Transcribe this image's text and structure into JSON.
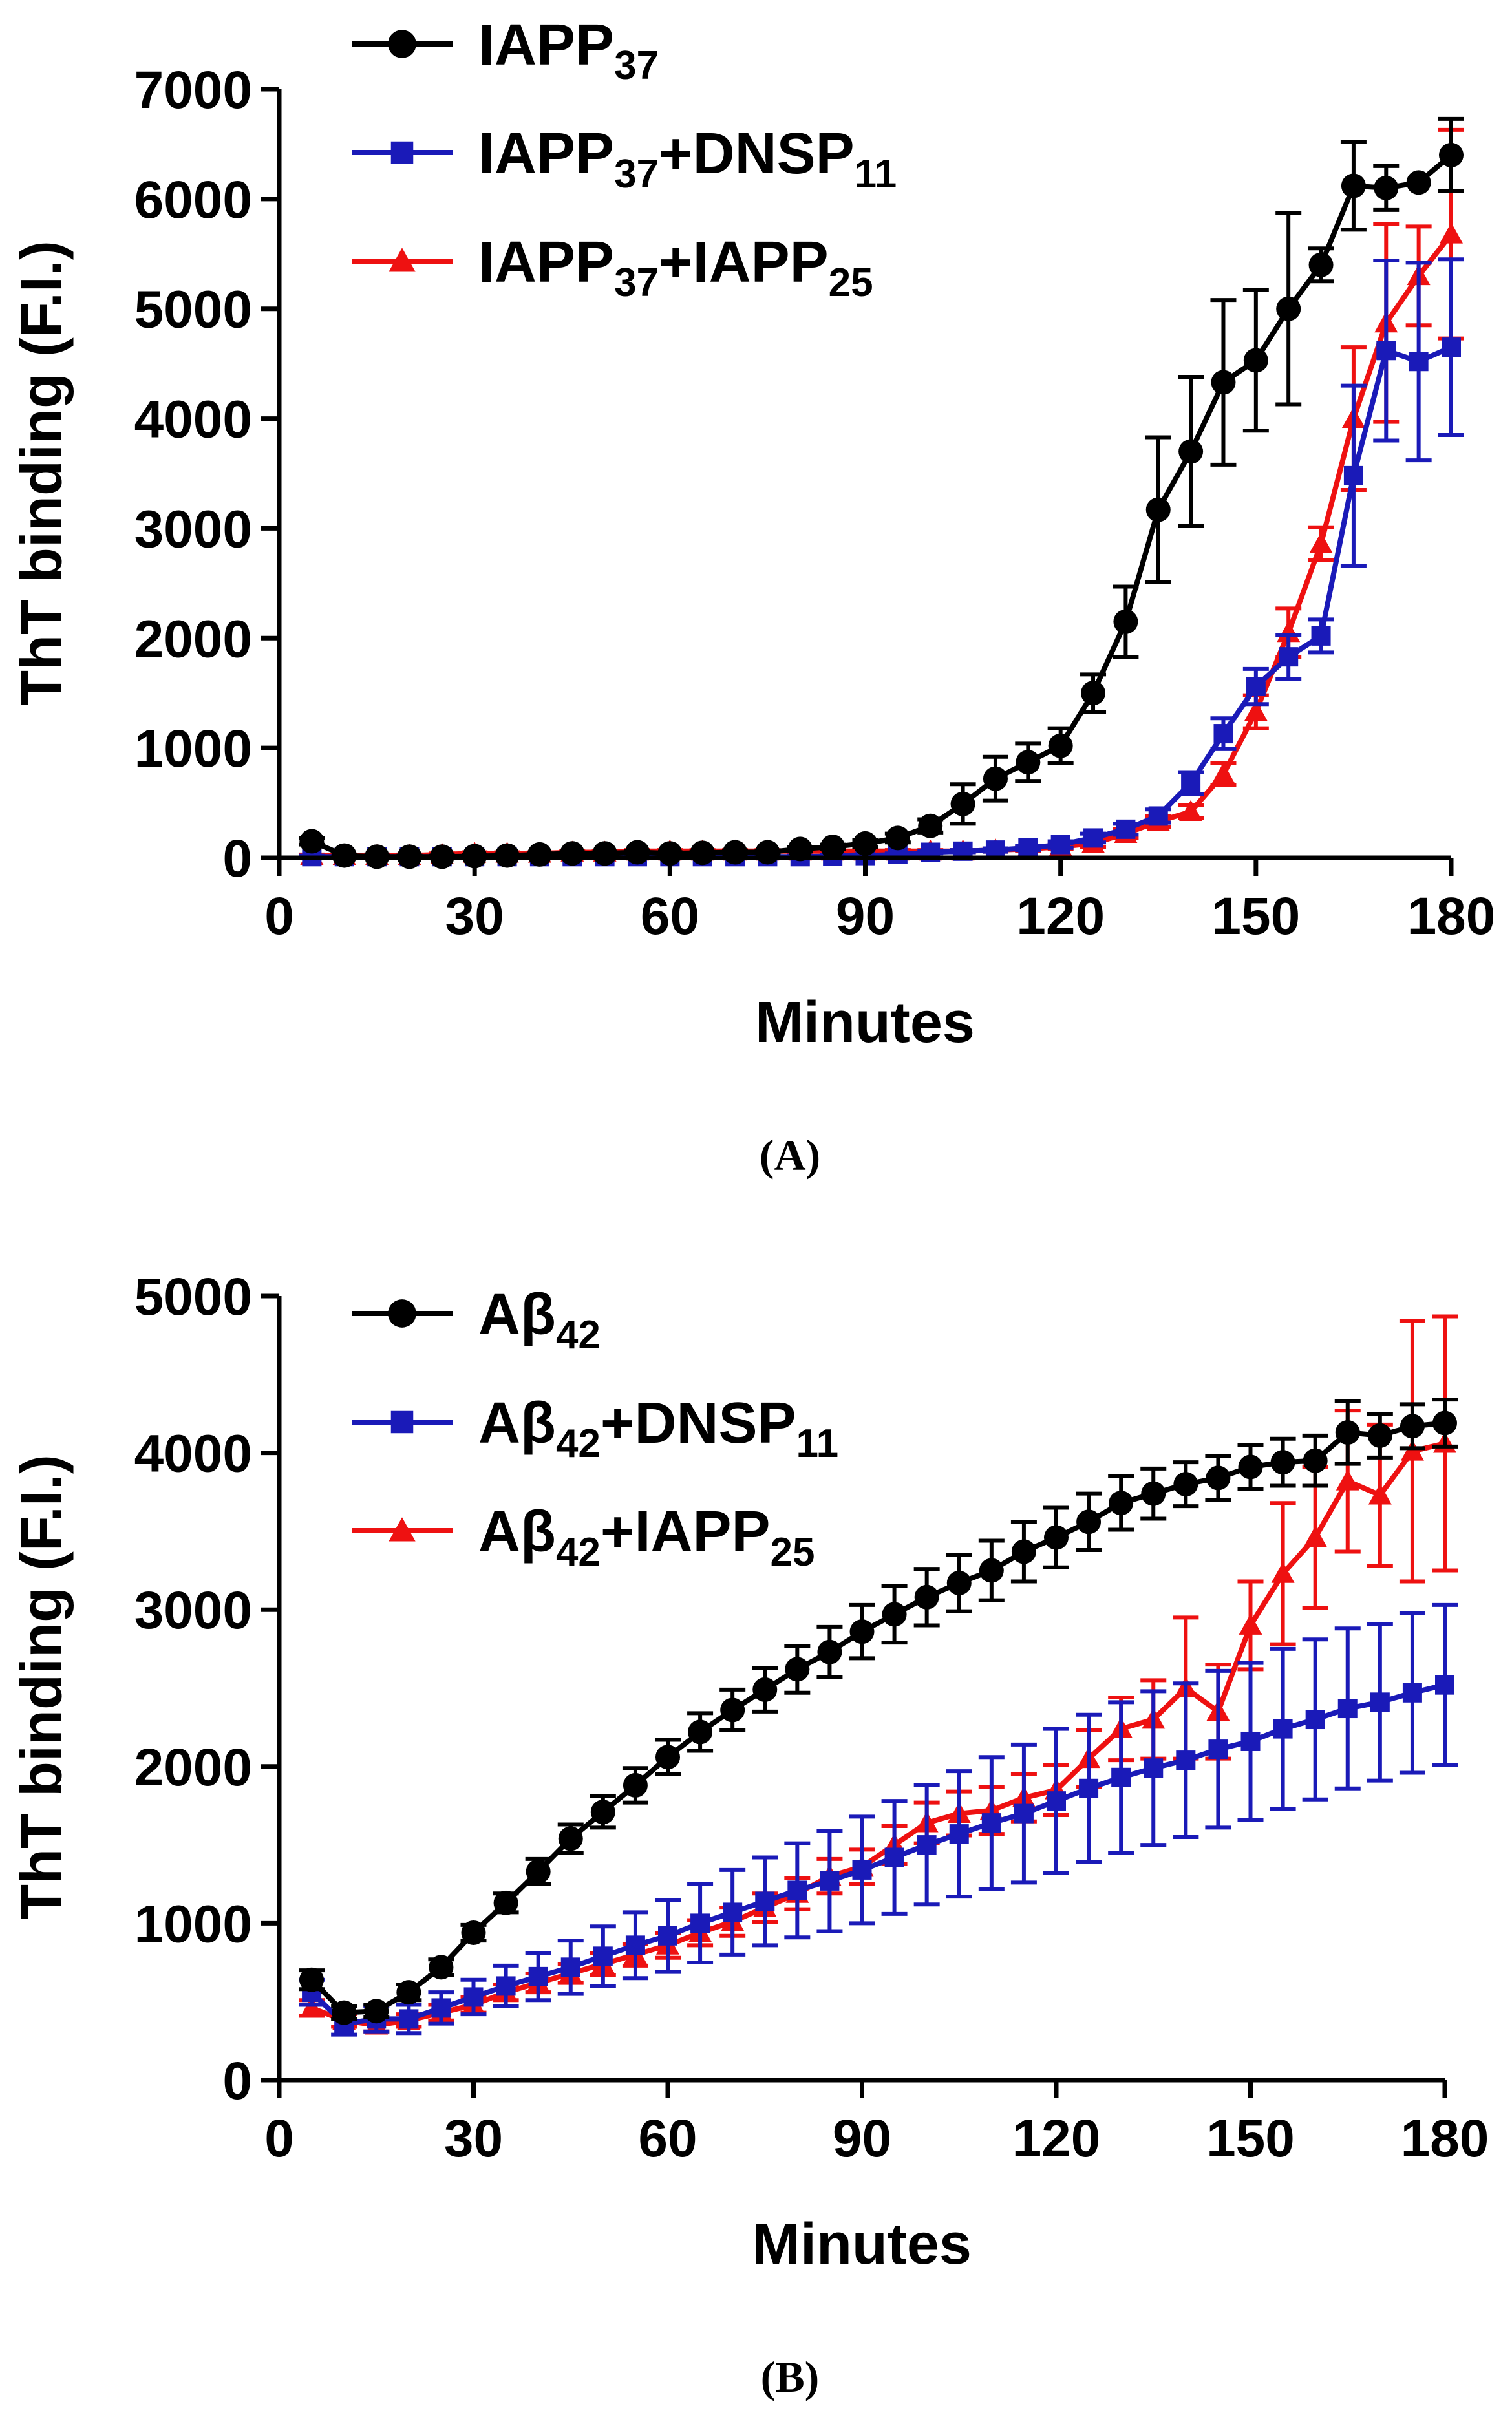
{
  "chart_data": [
    {
      "type": "line",
      "panel_label": "(A)",
      "xlabel": "Minutes",
      "ylabel": "ThT binding (F.I.)",
      "xlim": [
        0,
        180
      ],
      "ylim": [
        0,
        7000
      ],
      "xticks": [
        "0",
        "30",
        "60",
        "90",
        "120",
        "150",
        "180"
      ],
      "yticks": [
        "0",
        "1000",
        "2000",
        "3000",
        "4000",
        "5000",
        "6000",
        "7000"
      ],
      "series": [
        {
          "name": "IAPP37",
          "legend_parts": [
            "IAPP",
            "37",
            "",
            ""
          ],
          "color": "#000000",
          "marker": "circle",
          "x": [
            5,
            10,
            15,
            20,
            25,
            30,
            35,
            40,
            45,
            50,
            55,
            60,
            65,
            70,
            75,
            80,
            85,
            90,
            95,
            100,
            105,
            110,
            115,
            120,
            125,
            130,
            135,
            140,
            145,
            150,
            155,
            160,
            165,
            170,
            175,
            180
          ],
          "y": [
            150,
            20,
            10,
            10,
            10,
            15,
            20,
            30,
            40,
            40,
            50,
            40,
            45,
            50,
            50,
            80,
            100,
            130,
            180,
            290,
            490,
            720,
            870,
            1020,
            1500,
            2150,
            3170,
            3700,
            4330,
            4530,
            5000,
            5400,
            6120,
            6100,
            6150,
            6400
          ],
          "err": [
            30,
            10,
            10,
            10,
            10,
            10,
            10,
            10,
            10,
            10,
            10,
            10,
            10,
            10,
            10,
            20,
            20,
            30,
            40,
            60,
            180,
            200,
            170,
            160,
            170,
            320,
            660,
            680,
            750,
            640,
            870,
            150,
            400,
            200,
            0,
            330
          ]
        },
        {
          "name": "IAPP37+DNSP11",
          "legend_parts": [
            "IAPP",
            "37",
            "+DNSP",
            "11"
          ],
          "color": "#1a1ab8",
          "marker": "square",
          "x": [
            5,
            10,
            15,
            20,
            25,
            30,
            35,
            40,
            45,
            50,
            55,
            60,
            65,
            70,
            75,
            80,
            85,
            90,
            95,
            100,
            105,
            110,
            115,
            120,
            125,
            130,
            135,
            140,
            145,
            150,
            155,
            160,
            165,
            170,
            175,
            180
          ],
          "y": [
            10,
            10,
            10,
            10,
            10,
            10,
            10,
            10,
            10,
            10,
            10,
            10,
            10,
            10,
            10,
            10,
            15,
            20,
            30,
            50,
            60,
            70,
            90,
            120,
            180,
            260,
            380,
            680,
            1130,
            1560,
            1830,
            2020,
            3480,
            4620,
            4520,
            4650
          ],
          "err": [
            10,
            10,
            10,
            10,
            10,
            10,
            10,
            10,
            10,
            10,
            10,
            10,
            10,
            10,
            10,
            10,
            10,
            10,
            10,
            10,
            10,
            15,
            20,
            30,
            40,
            50,
            60,
            100,
            140,
            160,
            200,
            150,
            820,
            820,
            900,
            800
          ]
        },
        {
          "name": "IAPP37+IAPP25",
          "legend_parts": [
            "IAPP",
            "37",
            "+IAPP",
            "25"
          ],
          "color": "#ee1111",
          "marker": "triangle",
          "x": [
            5,
            10,
            15,
            20,
            25,
            30,
            35,
            40,
            45,
            50,
            55,
            60,
            65,
            70,
            75,
            80,
            85,
            90,
            95,
            100,
            105,
            110,
            115,
            120,
            125,
            130,
            135,
            140,
            145,
            150,
            155,
            160,
            165,
            170,
            175,
            180
          ],
          "y": [
            20,
            20,
            20,
            20,
            30,
            40,
            40,
            40,
            50,
            50,
            60,
            60,
            60,
            60,
            60,
            60,
            60,
            60,
            60,
            60,
            60,
            70,
            80,
            100,
            130,
            220,
            330,
            420,
            760,
            1330,
            2050,
            2860,
            4000,
            4870,
            5300,
            5680
          ],
          "err": [
            10,
            10,
            10,
            10,
            10,
            10,
            10,
            10,
            10,
            10,
            10,
            10,
            10,
            10,
            10,
            10,
            10,
            10,
            10,
            10,
            10,
            15,
            20,
            20,
            30,
            40,
            50,
            60,
            100,
            150,
            220,
            150,
            650,
            900,
            450,
            950
          ]
        }
      ]
    },
    {
      "type": "line",
      "panel_label": "(B)",
      "xlabel": "Minutes",
      "ylabel": "ThT binding (F.I.)",
      "xlim": [
        0,
        180
      ],
      "ylim": [
        0,
        5000
      ],
      "xticks": [
        "0",
        "30",
        "60",
        "90",
        "120",
        "150",
        "180"
      ],
      "yticks": [
        "0",
        "1000",
        "2000",
        "3000",
        "4000",
        "5000"
      ],
      "series": [
        {
          "name": "Aβ42",
          "legend_parts": [
            "Aβ",
            "42",
            "",
            ""
          ],
          "color": "#000000",
          "marker": "circle",
          "x": [
            5,
            10,
            15,
            20,
            25,
            30,
            35,
            40,
            45,
            50,
            55,
            60,
            65,
            70,
            75,
            80,
            85,
            90,
            95,
            100,
            105,
            110,
            115,
            120,
            125,
            130,
            135,
            140,
            145,
            150,
            155,
            160,
            165,
            170,
            175,
            180
          ],
          "y": [
            640,
            430,
            440,
            560,
            720,
            940,
            1130,
            1330,
            1540,
            1710,
            1880,
            2060,
            2220,
            2360,
            2490,
            2620,
            2730,
            2860,
            2970,
            3080,
            3170,
            3250,
            3370,
            3460,
            3560,
            3680,
            3740,
            3800,
            3840,
            3910,
            3940,
            3950,
            4130,
            4110,
            4170,
            4190
          ],
          "err": [
            60,
            40,
            40,
            50,
            50,
            50,
            60,
            80,
            90,
            100,
            110,
            110,
            120,
            130,
            140,
            150,
            160,
            170,
            180,
            180,
            180,
            190,
            190,
            190,
            180,
            170,
            160,
            140,
            140,
            140,
            150,
            160,
            200,
            140,
            140,
            150
          ]
        },
        {
          "name": "Aβ42+DNSP11",
          "legend_parts": [
            "Aβ",
            "42",
            "+DNSP",
            "11"
          ],
          "color": "#1a1ab8",
          "marker": "square",
          "x": [
            5,
            10,
            15,
            20,
            25,
            30,
            35,
            40,
            45,
            50,
            55,
            60,
            65,
            70,
            75,
            80,
            85,
            90,
            95,
            100,
            105,
            110,
            115,
            120,
            125,
            130,
            135,
            140,
            145,
            150,
            155,
            160,
            165,
            170,
            175,
            180
          ],
          "y": [
            560,
            360,
            390,
            390,
            460,
            530,
            600,
            660,
            720,
            790,
            860,
            920,
            1000,
            1070,
            1140,
            1210,
            1270,
            1340,
            1420,
            1500,
            1570,
            1640,
            1700,
            1780,
            1860,
            1930,
            1990,
            2040,
            2110,
            2160,
            2240,
            2300,
            2370,
            2410,
            2470,
            2520
          ],
          "err": [
            80,
            70,
            80,
            90,
            100,
            110,
            130,
            150,
            170,
            190,
            210,
            230,
            250,
            270,
            280,
            300,
            320,
            340,
            360,
            380,
            400,
            420,
            440,
            460,
            470,
            480,
            490,
            490,
            500,
            500,
            510,
            510,
            510,
            500,
            510,
            510
          ]
        },
        {
          "name": "Aβ42+IAPP25",
          "legend_parts": [
            "Aβ",
            "42",
            "+IAPP",
            "25"
          ],
          "color": "#ee1111",
          "marker": "triangle",
          "x": [
            5,
            10,
            15,
            20,
            25,
            30,
            35,
            40,
            45,
            50,
            55,
            60,
            65,
            70,
            75,
            80,
            85,
            90,
            95,
            100,
            105,
            110,
            115,
            120,
            125,
            130,
            135,
            140,
            145,
            150,
            155,
            160,
            165,
            170,
            175,
            180
          ],
          "y": [
            460,
            380,
            350,
            380,
            430,
            480,
            560,
            620,
            680,
            740,
            800,
            860,
            940,
            1010,
            1100,
            1190,
            1300,
            1360,
            1500,
            1640,
            1700,
            1720,
            1800,
            1850,
            2050,
            2240,
            2300,
            2500,
            2350,
            2900,
            3230,
            3460,
            3820,
            3730,
            4010,
            4060
          ],
          "err": [
            50,
            40,
            40,
            40,
            50,
            50,
            50,
            60,
            60,
            70,
            70,
            80,
            80,
            90,
            90,
            100,
            110,
            110,
            120,
            130,
            140,
            150,
            150,
            160,
            180,
            200,
            250,
            450,
            300,
            280,
            450,
            450,
            450,
            450,
            830,
            810
          ]
        }
      ]
    }
  ]
}
